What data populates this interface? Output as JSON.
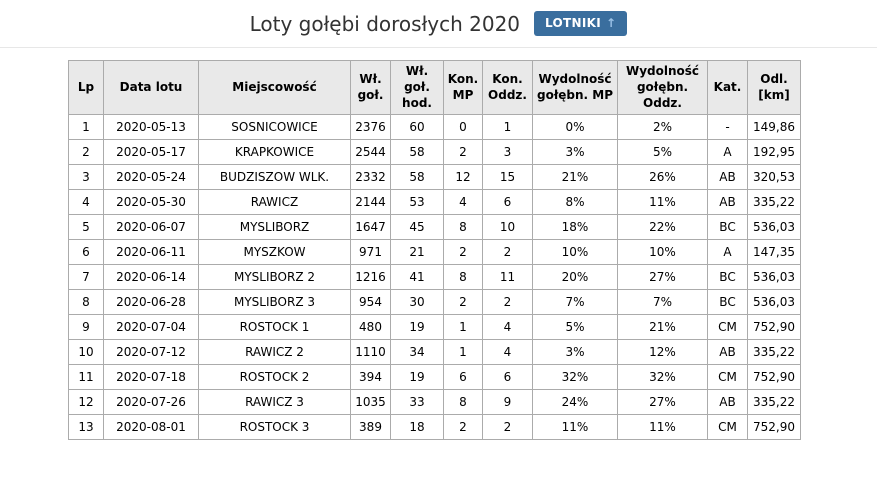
{
  "header": {
    "title": "Loty gołębi dorosłych 2020",
    "button": {
      "label": "LOTNIKI",
      "arrow": "↑"
    }
  },
  "colors": {
    "accent": "#3a6e9e",
    "button_arrow": "#9cc3e8",
    "table_header_bg": "#e9e9e9",
    "table_border": "#ababab",
    "title_text": "#333333"
  },
  "table": {
    "columns": [
      "Lp",
      "Data lotu",
      "Miejscowość",
      "Wł.\ngoł.",
      "Wł. goł.\nhod.",
      "Kon.\nMP",
      "Kon.\nOddz.",
      "Wydolność\ngołębn. MP",
      "Wydolność\ngołębn. Oddz.",
      "Kat.",
      "Odl.\n[km]"
    ],
    "rows": [
      [
        "1",
        "2020-05-13",
        "SOSNICOWICE",
        "2376",
        "60",
        "0",
        "1",
        "0%",
        "2%",
        "-",
        "149,86"
      ],
      [
        "2",
        "2020-05-17",
        "KRAPKOWICE",
        "2544",
        "58",
        "2",
        "3",
        "3%",
        "5%",
        "A",
        "192,95"
      ],
      [
        "3",
        "2020-05-24",
        "BUDZISZOW WLK.",
        "2332",
        "58",
        "12",
        "15",
        "21%",
        "26%",
        "AB",
        "320,53"
      ],
      [
        "4",
        "2020-05-30",
        "RAWICZ",
        "2144",
        "53",
        "4",
        "6",
        "8%",
        "11%",
        "AB",
        "335,22"
      ],
      [
        "5",
        "2020-06-07",
        "MYSLIBORZ",
        "1647",
        "45",
        "8",
        "10",
        "18%",
        "22%",
        "BC",
        "536,03"
      ],
      [
        "6",
        "2020-06-11",
        "MYSZKOW",
        "971",
        "21",
        "2",
        "2",
        "10%",
        "10%",
        "A",
        "147,35"
      ],
      [
        "7",
        "2020-06-14",
        "MYSLIBORZ 2",
        "1216",
        "41",
        "8",
        "11",
        "20%",
        "27%",
        "BC",
        "536,03"
      ],
      [
        "8",
        "2020-06-28",
        "MYSLIBORZ 3",
        "954",
        "30",
        "2",
        "2",
        "7%",
        "7%",
        "BC",
        "536,03"
      ],
      [
        "9",
        "2020-07-04",
        "ROSTOCK 1",
        "480",
        "19",
        "1",
        "4",
        "5%",
        "21%",
        "CM",
        "752,90"
      ],
      [
        "10",
        "2020-07-12",
        "RAWICZ 2",
        "1110",
        "34",
        "1",
        "4",
        "3%",
        "12%",
        "AB",
        "335,22"
      ],
      [
        "11",
        "2020-07-18",
        "ROSTOCK 2",
        "394",
        "19",
        "6",
        "6",
        "32%",
        "32%",
        "CM",
        "752,90"
      ],
      [
        "12",
        "2020-07-26",
        "RAWICZ 3",
        "1035",
        "33",
        "8",
        "9",
        "24%",
        "27%",
        "AB",
        "335,22"
      ],
      [
        "13",
        "2020-08-01",
        "ROSTOCK 3",
        "389",
        "18",
        "2",
        "2",
        "11%",
        "11%",
        "CM",
        "752,90"
      ]
    ]
  }
}
